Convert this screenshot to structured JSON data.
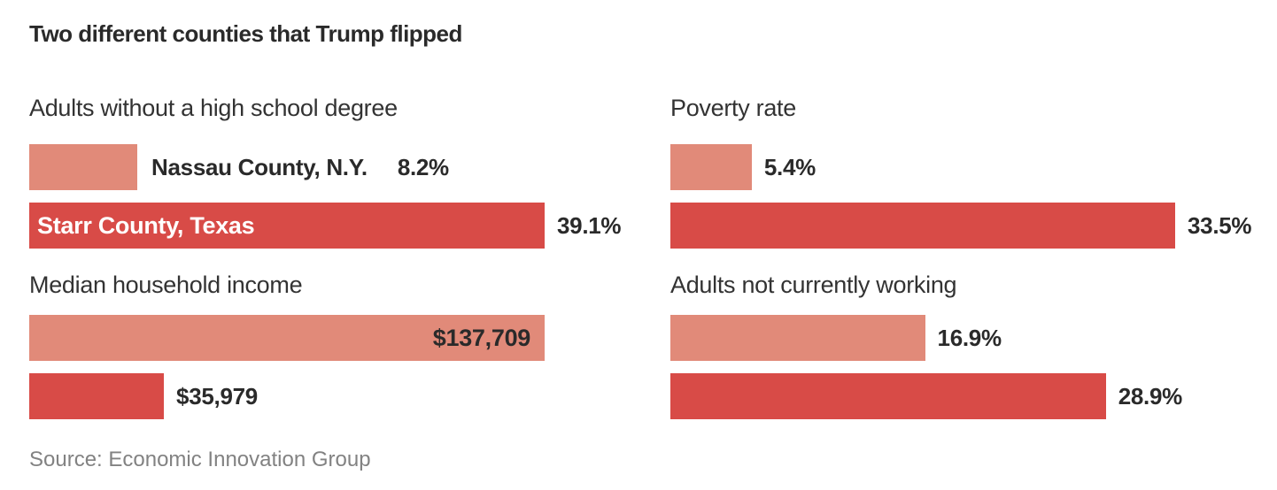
{
  "title": "Two different counties that Trump flipped",
  "source_note": "Source: Economic Innovation Group",
  "colors": {
    "bar_light": "#e18a79",
    "bar_red": "#d84b47",
    "text_dark": "#2a2a2a",
    "header_text": "#333333",
    "inside_label_light": "#ffffff",
    "source_text": "#828282",
    "background": "#ffffff"
  },
  "chart_data": {
    "type": "bar",
    "orientation": "horizontal",
    "grid": false,
    "legend_position": "none",
    "series": [
      "Nassau County, N.Y.",
      "Starr County, Texas"
    ],
    "sections": [
      {
        "title": "Adults without a high school degree",
        "column": "left",
        "unit": "percent",
        "scale_max": 39.1,
        "bars": [
          {
            "series": "Nassau County, N.Y.",
            "value": 8.2,
            "label": "8.2%",
            "county_label": "Nassau County, N.Y.",
            "county_label_position": "outside",
            "label_position": "outside"
          },
          {
            "series": "Starr County, Texas",
            "value": 39.1,
            "label": "39.1%",
            "county_label": "Starr County, Texas",
            "county_label_position": "inside",
            "label_position": "outside"
          }
        ]
      },
      {
        "title": "Poverty rate",
        "column": "right",
        "unit": "percent",
        "scale_max": 33.5,
        "bars": [
          {
            "series": "Nassau County, N.Y.",
            "value": 5.4,
            "label": "5.4%",
            "label_position": "outside"
          },
          {
            "series": "Starr County, Texas",
            "value": 33.5,
            "label": "33.5%",
            "label_position": "outside"
          }
        ]
      },
      {
        "title": "Median household income",
        "column": "left",
        "unit": "dollars",
        "scale_max": 137709,
        "bars": [
          {
            "series": "Nassau County, N.Y.",
            "value": 137709,
            "label": "$137,709",
            "label_position": "inside"
          },
          {
            "series": "Starr County, Texas",
            "value": 35979,
            "label": "$35,979",
            "label_position": "outside"
          }
        ]
      },
      {
        "title": "Adults not currently working",
        "column": "right",
        "unit": "percent",
        "scale_max": 33.5,
        "bars": [
          {
            "series": "Nassau County, N.Y.",
            "value": 16.9,
            "label": "16.9%",
            "label_position": "outside"
          },
          {
            "series": "Starr County, Texas",
            "value": 28.9,
            "label": "28.9%",
            "label_position": "outside"
          }
        ]
      }
    ]
  }
}
